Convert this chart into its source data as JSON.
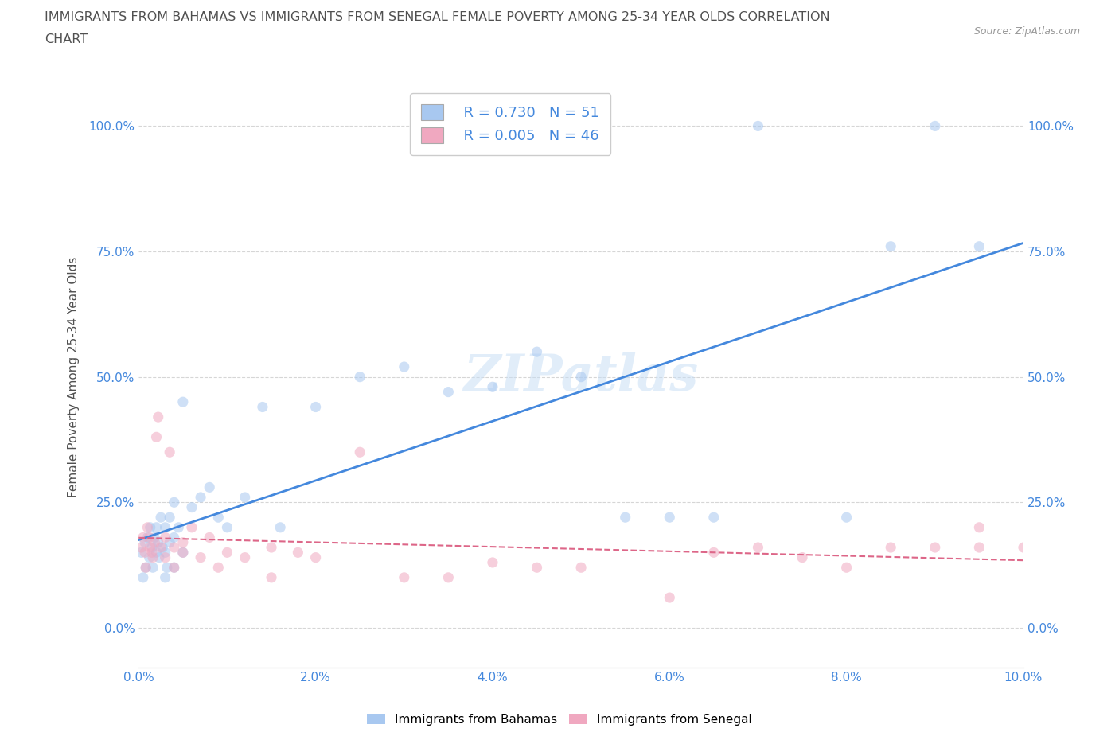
{
  "title_line1": "IMMIGRANTS FROM BAHAMAS VS IMMIGRANTS FROM SENEGAL FEMALE POVERTY AMONG 25-34 YEAR OLDS CORRELATION",
  "title_line2": "CHART",
  "source": "Source: ZipAtlas.com",
  "ylabel": "Female Poverty Among 25-34 Year Olds",
  "xlim": [
    0.0,
    0.1
  ],
  "ylim": [
    -0.08,
    1.08
  ],
  "yticks": [
    0.0,
    0.25,
    0.5,
    0.75,
    1.0
  ],
  "ytick_labels": [
    "0.0%",
    "25.0%",
    "50.0%",
    "75.0%",
    "100.0%"
  ],
  "xticks": [
    0.0,
    0.02,
    0.04,
    0.06,
    0.08,
    0.1
  ],
  "xtick_labels": [
    "0.0%",
    "2.0%",
    "4.0%",
    "6.0%",
    "8.0%",
    "10.0%"
  ],
  "watermark": "ZIPatlas",
  "legend_entries": [
    {
      "label": "Immigrants from Bahamas",
      "R": "0.730",
      "N": "51",
      "color": "#a8c8f0"
    },
    {
      "label": "Immigrants from Senegal",
      "R": "0.005",
      "N": "46",
      "color": "#f0a8c0"
    }
  ],
  "bahamas_x": [
    0.0003,
    0.0005,
    0.0007,
    0.0008,
    0.001,
    0.0012,
    0.0013,
    0.0015,
    0.0016,
    0.0018,
    0.002,
    0.002,
    0.0022,
    0.0023,
    0.0025,
    0.0027,
    0.003,
    0.003,
    0.003,
    0.0032,
    0.0035,
    0.0035,
    0.004,
    0.004,
    0.004,
    0.0045,
    0.005,
    0.005,
    0.006,
    0.007,
    0.008,
    0.009,
    0.01,
    0.012,
    0.014,
    0.016,
    0.02,
    0.025,
    0.03,
    0.035,
    0.04,
    0.045,
    0.05,
    0.055,
    0.06,
    0.065,
    0.07,
    0.08,
    0.085,
    0.09,
    0.095
  ],
  "bahamas_y": [
    0.15,
    0.1,
    0.17,
    0.12,
    0.18,
    0.14,
    0.2,
    0.16,
    0.12,
    0.18,
    0.15,
    0.2,
    0.17,
    0.14,
    0.22,
    0.16,
    0.1,
    0.15,
    0.2,
    0.12,
    0.22,
    0.17,
    0.18,
    0.12,
    0.25,
    0.2,
    0.45,
    0.15,
    0.24,
    0.26,
    0.28,
    0.22,
    0.2,
    0.26,
    0.44,
    0.2,
    0.44,
    0.5,
    0.52,
    0.47,
    0.48,
    0.55,
    0.5,
    0.22,
    0.22,
    0.22,
    1.0,
    0.22,
    0.76,
    1.0,
    0.76
  ],
  "senegal_x": [
    0.0003,
    0.0005,
    0.0007,
    0.0008,
    0.001,
    0.0012,
    0.0013,
    0.0015,
    0.0016,
    0.0018,
    0.002,
    0.0022,
    0.0025,
    0.003,
    0.003,
    0.0035,
    0.004,
    0.004,
    0.005,
    0.005,
    0.006,
    0.007,
    0.008,
    0.009,
    0.01,
    0.012,
    0.015,
    0.015,
    0.018,
    0.02,
    0.025,
    0.03,
    0.035,
    0.04,
    0.045,
    0.05,
    0.06,
    0.065,
    0.07,
    0.075,
    0.08,
    0.085,
    0.09,
    0.095,
    0.095,
    0.1
  ],
  "senegal_y": [
    0.16,
    0.18,
    0.15,
    0.12,
    0.2,
    0.18,
    0.16,
    0.15,
    0.14,
    0.17,
    0.38,
    0.42,
    0.16,
    0.14,
    0.18,
    0.35,
    0.16,
    0.12,
    0.15,
    0.17,
    0.2,
    0.14,
    0.18,
    0.12,
    0.15,
    0.14,
    0.1,
    0.16,
    0.15,
    0.14,
    0.35,
    0.1,
    0.1,
    0.13,
    0.12,
    0.12,
    0.06,
    0.15,
    0.16,
    0.14,
    0.12,
    0.16,
    0.16,
    0.2,
    0.16,
    0.16
  ],
  "bahamas_line_color": "#4488dd",
  "senegal_line_color": "#dd6688",
  "tick_label_color": "#4488dd",
  "title_color": "#505050",
  "axis_label_color": "#505050",
  "grid_color": "#cccccc",
  "dot_alpha": 0.55,
  "dot_size": 90
}
